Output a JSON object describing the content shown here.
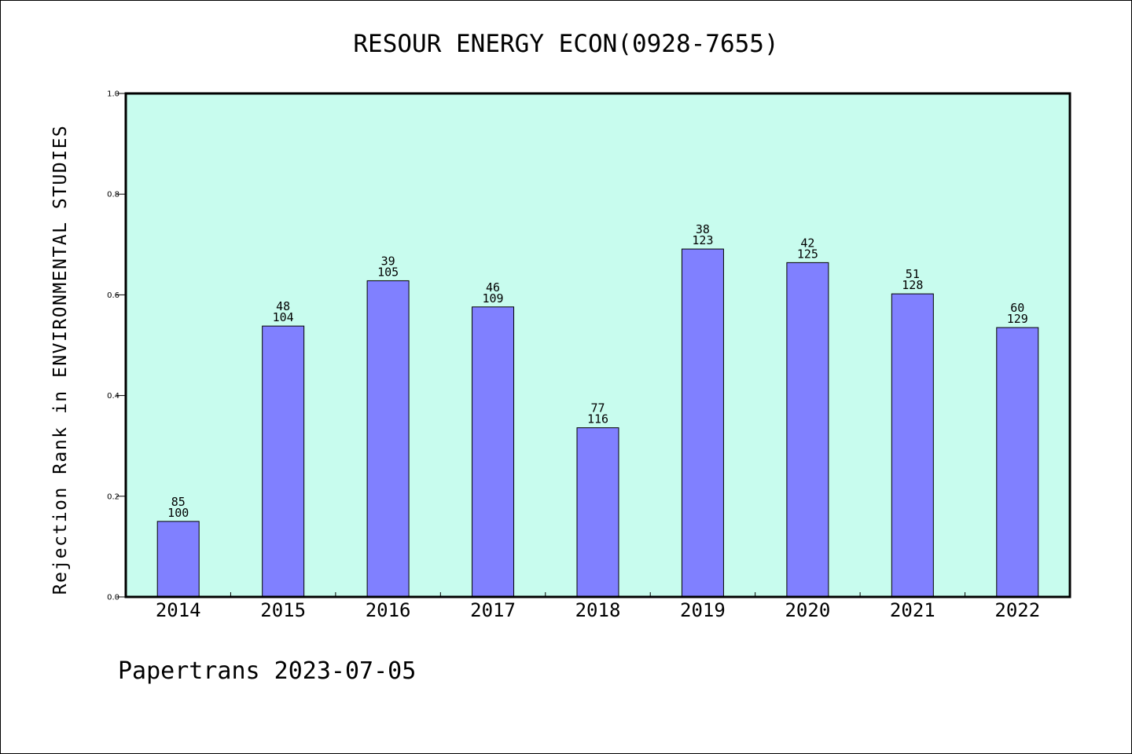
{
  "chart_data": {
    "type": "bar",
    "title": "RESOUR ENERGY ECON(0928-7655)",
    "ylabel": "Rejection Rank in ENVIRONMENTAL STUDIES",
    "xlabel": "",
    "footer": "Papertrans 2023-07-05",
    "ylim": [
      0,
      1.0
    ],
    "yticks": [
      "0.0",
      "0.2",
      "0.4",
      "0.6",
      "0.8",
      "1.0"
    ],
    "categories": [
      "2014",
      "2015",
      "2016",
      "2017",
      "2018",
      "2019",
      "2020",
      "2021",
      "2022"
    ],
    "values": [
      0.15,
      0.538,
      0.628,
      0.576,
      0.336,
      0.691,
      0.664,
      0.602,
      0.535
    ],
    "label_top": [
      "85",
      "48",
      "39",
      "46",
      "77",
      "38",
      "42",
      "51",
      "60"
    ],
    "label_bottom": [
      "100",
      "104",
      "105",
      "109",
      "116",
      "123",
      "125",
      "128",
      "129"
    ],
    "grid": false,
    "colors": {
      "plot_background": "#c8fcee",
      "bar_fill": "#8080ff",
      "bar_stroke": "#000000",
      "axis": "#000000"
    }
  }
}
